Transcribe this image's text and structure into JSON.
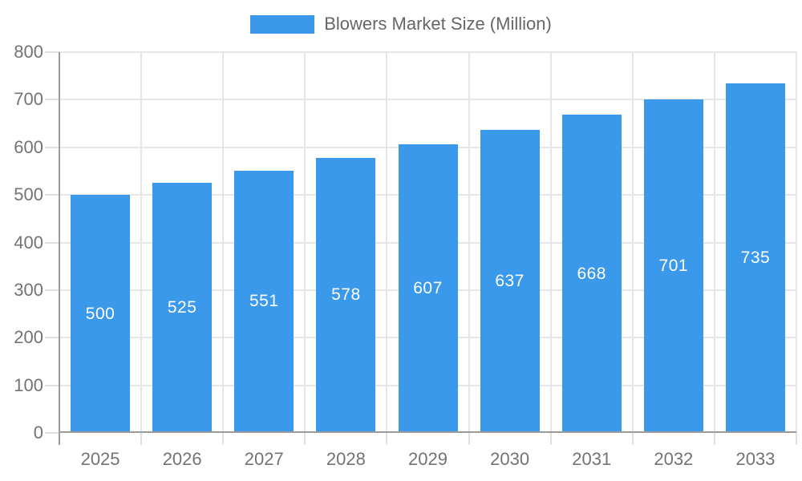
{
  "legend": {
    "label": "Blowers Market Size (Million)"
  },
  "colors": {
    "bar": "#3B99EC",
    "grid_line": "#E6E6E6",
    "axis_line": "#9B9B9B",
    "tick_mark": "#E0E0E0",
    "axis_label": "#737373",
    "legend_text": "#666666",
    "value_label": "#FFFFFF",
    "background": "#FFFFFF"
  },
  "chart_data": {
    "type": "bar",
    "title": "Blowers Market Size (Million)",
    "series_name": "Blowers Market Size (Million)",
    "categories": [
      "2025",
      "2026",
      "2027",
      "2028",
      "2029",
      "2030",
      "2031",
      "2032",
      "2033"
    ],
    "values": [
      500,
      525,
      551,
      578,
      607,
      637,
      668,
      701,
      735
    ],
    "xlabel": "",
    "ylabel": "",
    "ylim": [
      0,
      800
    ],
    "y_ticks": [
      0,
      100,
      200,
      300,
      400,
      500,
      600,
      700,
      800
    ],
    "grid": true,
    "legend_position": "top",
    "value_label_position": "inside-center"
  }
}
